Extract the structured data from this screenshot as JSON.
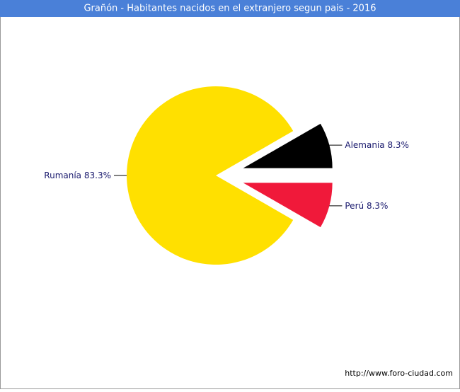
{
  "chart_data": {
    "type": "pie",
    "title": "Grañón - Habitantes nacidos en el extranjero segun pais - 2016",
    "categories": [
      "Alemania",
      "Rumanía",
      "Perú"
    ],
    "values": [
      8.3,
      83.3,
      8.3
    ],
    "value_labels": [
      "8.3%",
      "83.3%",
      "8.3%"
    ],
    "colors": [
      "#000000",
      "#ffe000",
      "#f0193a"
    ],
    "source": "http://www.foro-ciudad.com"
  }
}
